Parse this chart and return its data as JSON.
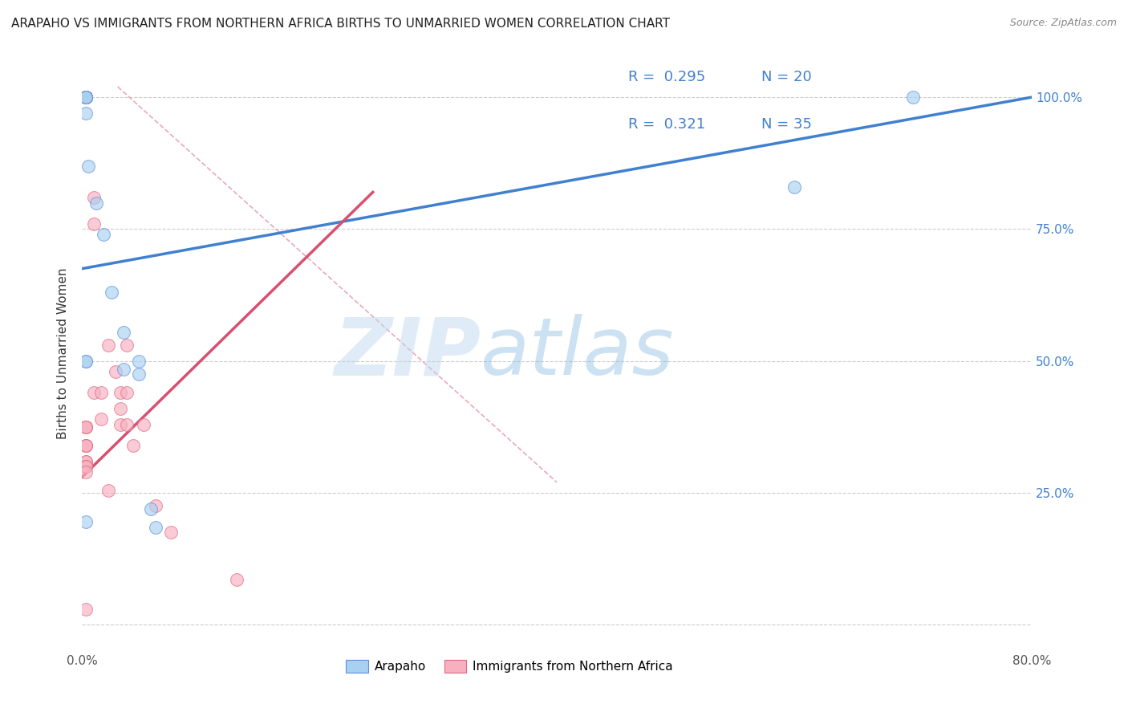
{
  "title": "ARAPAHO VS IMMIGRANTS FROM NORTHERN AFRICA BIRTHS TO UNMARRIED WOMEN CORRELATION CHART",
  "source": "Source: ZipAtlas.com",
  "ylabel": "Births to Unmarried Women",
  "xlim": [
    0.0,
    0.8
  ],
  "ylim": [
    -0.05,
    1.08
  ],
  "xticks": [
    0.0,
    0.1,
    0.2,
    0.3,
    0.4,
    0.5,
    0.6,
    0.7,
    0.8
  ],
  "xticklabels": [
    "0.0%",
    "",
    "",
    "",
    "",
    "",
    "",
    "",
    "80.0%"
  ],
  "ytick_positions": [
    0.0,
    0.25,
    0.5,
    0.75,
    1.0
  ],
  "yticklabels": [
    "",
    "25.0%",
    "50.0%",
    "75.0%",
    "100.0%"
  ],
  "blue_scatter_x": [
    0.003,
    0.003,
    0.003,
    0.003,
    0.003,
    0.005,
    0.012,
    0.018,
    0.025,
    0.035,
    0.035,
    0.048,
    0.048,
    0.058,
    0.062,
    0.6,
    0.7,
    0.003,
    0.003,
    0.003
  ],
  "blue_scatter_y": [
    1.0,
    1.0,
    1.0,
    1.0,
    0.97,
    0.87,
    0.8,
    0.74,
    0.63,
    0.555,
    0.485,
    0.5,
    0.475,
    0.22,
    0.185,
    0.83,
    1.0,
    0.5,
    0.5,
    0.195
  ],
  "pink_scatter_x": [
    0.003,
    0.003,
    0.003,
    0.003,
    0.003,
    0.003,
    0.003,
    0.003,
    0.003,
    0.003,
    0.003,
    0.003,
    0.003,
    0.003,
    0.003,
    0.01,
    0.01,
    0.01,
    0.016,
    0.016,
    0.022,
    0.028,
    0.032,
    0.032,
    0.032,
    0.038,
    0.038,
    0.038,
    0.043,
    0.052,
    0.062,
    0.075,
    0.13,
    0.022,
    0.003
  ],
  "pink_scatter_y": [
    1.0,
    1.0,
    1.0,
    1.0,
    0.375,
    0.375,
    0.375,
    0.34,
    0.34,
    0.34,
    0.31,
    0.31,
    0.3,
    0.3,
    0.29,
    0.81,
    0.76,
    0.44,
    0.44,
    0.39,
    0.53,
    0.48,
    0.44,
    0.41,
    0.38,
    0.53,
    0.44,
    0.38,
    0.34,
    0.38,
    0.225,
    0.175,
    0.085,
    0.255,
    0.03
  ],
  "blue_line_x": [
    0.0,
    0.8
  ],
  "blue_line_y": [
    0.675,
    1.0
  ],
  "pink_line_x": [
    0.0,
    0.245
  ],
  "pink_line_y": [
    0.28,
    0.82
  ],
  "diag_line_x": [
    0.03,
    0.4
  ],
  "diag_line_y": [
    1.02,
    0.27
  ],
  "blue_color": "#A8D0F0",
  "pink_color": "#F8B0C0",
  "blue_scatter_edge": "#6090D8",
  "pink_scatter_edge": "#E06880",
  "blue_line_color": "#4080D0",
  "pink_line_color": "#D85070",
  "diag_line_color": "#E8A0B0",
  "legend_R_blue": "0.295",
  "legend_N_blue": "20",
  "legend_R_pink": "0.321",
  "legend_N_pink": "35",
  "watermark_zip": "ZIP",
  "watermark_atlas": "atlas",
  "legend_label_blue": "Arapaho",
  "legend_label_pink": "Immigrants from Northern Africa",
  "background_color": "#FFFFFF",
  "title_fontsize": 11,
  "axis_label_fontsize": 11,
  "tick_fontsize": 11,
  "source_fontsize": 9,
  "legend_fontsize": 13,
  "marker_size": 130
}
